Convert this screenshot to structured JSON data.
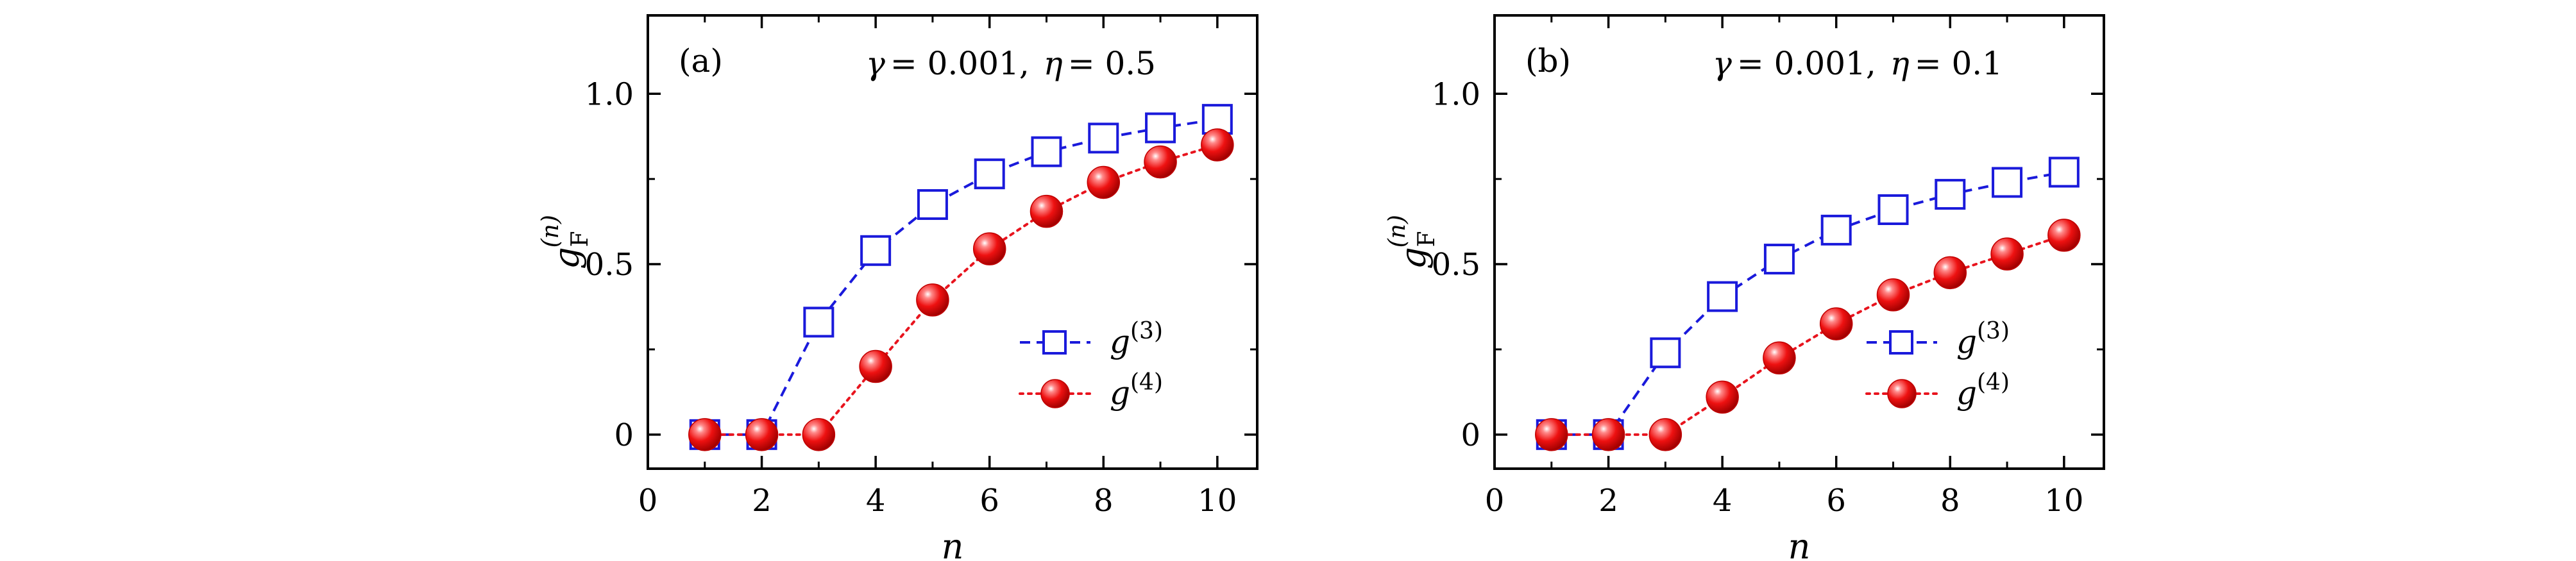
{
  "chart_data": [
    {
      "type": "line",
      "panel_label": "(a)",
      "annotation": {
        "gamma_symbol": "γ",
        "gamma_value": "= 0.001,",
        "eta_symbol": "η",
        "eta_value": "= 0.5"
      },
      "xlabel": "n",
      "ylabel": {
        "base": "g",
        "sup": "(n)",
        "sub": "F"
      },
      "xlim": [
        0,
        10.7
      ],
      "ylim": [
        -0.1,
        1.23
      ],
      "xticks": [
        0,
        2,
        4,
        6,
        8,
        10
      ],
      "xtick_labels": [
        "0",
        "2",
        "4",
        "6",
        "8",
        "10"
      ],
      "yticks": [
        0,
        0.5,
        1.0
      ],
      "ytick_labels": [
        "0",
        "0.5",
        "1.0"
      ],
      "x": [
        1,
        2,
        3,
        4,
        5,
        6,
        7,
        8,
        9,
        10
      ],
      "series": [
        {
          "name": "g",
          "name_sup": "(3)",
          "color": "#1a1adb",
          "marker": "open-square",
          "line": "dashed",
          "values": [
            0,
            0,
            0.33,
            0.54,
            0.675,
            0.765,
            0.83,
            0.87,
            0.9,
            0.925
          ]
        },
        {
          "name": "g",
          "name_sup": "(4)",
          "color": "#e8141e",
          "marker": "filled-sphere",
          "line": "dotted",
          "values": [
            0,
            0,
            0,
            0.2,
            0.395,
            0.545,
            0.655,
            0.74,
            0.8,
            0.85
          ]
        }
      ],
      "legend_position": "lower-right"
    },
    {
      "type": "line",
      "panel_label": "(b)",
      "annotation": {
        "gamma_symbol": "γ",
        "gamma_value": "= 0.001,",
        "eta_symbol": "η",
        "eta_value": "= 0.1"
      },
      "xlabel": "n",
      "ylabel": {
        "base": "g",
        "sup": "(n)",
        "sub": "F"
      },
      "xlim": [
        0,
        10.7
      ],
      "ylim": [
        -0.1,
        1.23
      ],
      "xticks": [
        0,
        2,
        4,
        6,
        8,
        10
      ],
      "xtick_labels": [
        "0",
        "2",
        "4",
        "6",
        "8",
        "10"
      ],
      "yticks": [
        0,
        0.5,
        1.0
      ],
      "ytick_labels": [
        "0",
        "0.5",
        "1.0"
      ],
      "x": [
        1,
        2,
        3,
        4,
        5,
        6,
        7,
        8,
        9,
        10
      ],
      "series": [
        {
          "name": "g",
          "name_sup": "(3)",
          "color": "#1a1adb",
          "marker": "open-square",
          "line": "dashed",
          "values": [
            0,
            0,
            0.24,
            0.405,
            0.515,
            0.6,
            0.66,
            0.705,
            0.74,
            0.77
          ]
        },
        {
          "name": "g",
          "name_sup": "(4)",
          "color": "#e8141e",
          "marker": "filled-sphere",
          "line": "dotted",
          "values": [
            0,
            0,
            0,
            0.11,
            0.225,
            0.325,
            0.41,
            0.475,
            0.53,
            0.585
          ]
        }
      ],
      "legend_position": "lower-right"
    }
  ]
}
